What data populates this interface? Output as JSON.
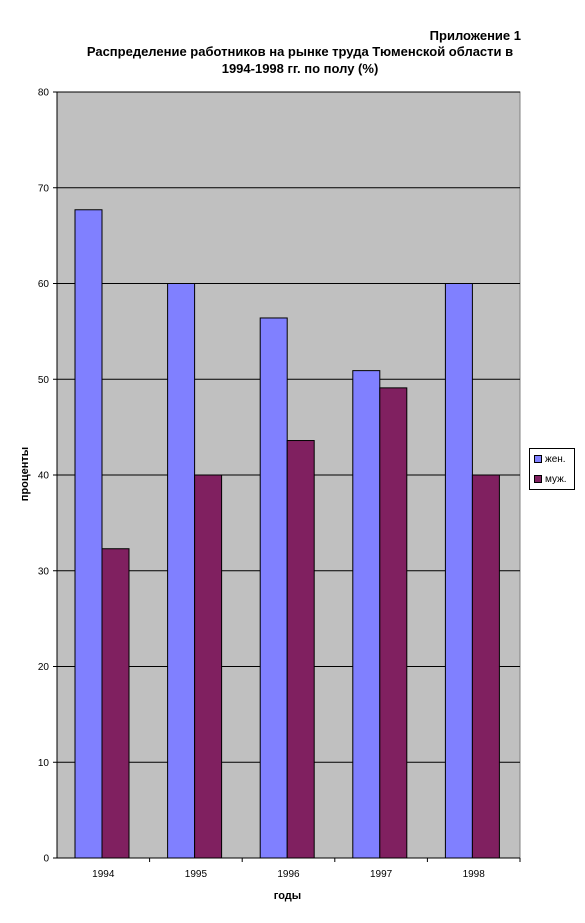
{
  "header": {
    "appendix": "Приложение 1",
    "title_line1": "Распределение работников на рынке труда Тюменской области в",
    "title_line2": "1994-1998 гг. по полу (%)"
  },
  "chart_data": {
    "type": "bar",
    "title": "Распределение работников на рынке труда Тюменской области в 1994-1998 гг. по полу (%)",
    "categories": [
      "1994",
      "1995",
      "1996",
      "1997",
      "1998"
    ],
    "series": [
      {
        "name": "жен.",
        "values": [
          67.7,
          60.0,
          56.4,
          50.9,
          60.0
        ],
        "color": "#8080ff"
      },
      {
        "name": "муж.",
        "values": [
          32.3,
          40.0,
          43.6,
          49.1,
          40.0
        ],
        "color": "#802060"
      }
    ],
    "xlabel": "годы",
    "ylabel": "проценты",
    "ylim": [
      0,
      80
    ],
    "yticks": [
      0,
      10,
      20,
      30,
      40,
      50,
      60,
      70,
      80
    ],
    "grid": true,
    "legend": "right",
    "plot_background": "#c0c0c0"
  }
}
